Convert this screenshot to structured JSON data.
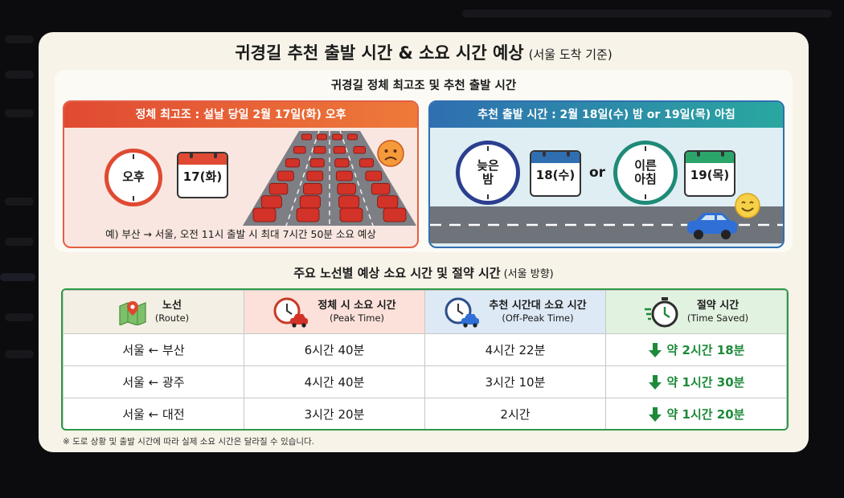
{
  "title": {
    "main": "귀경길 추천 출발 시간 & 소요 시간 예상",
    "sub": "(서울 도착 기준)"
  },
  "top_section": {
    "heading": "귀경길 정체 최고조 및 추천 출발 시간",
    "peak": {
      "header": "정체 최고조 : 설날 당일 2월 17일(화) 오후",
      "clock_label": "오후",
      "calendar_label": "17(화)",
      "note": "예) 부산 → 서울, 오전 11시 출발 시 최대 7시간 50분 소요 예상"
    },
    "recommend": {
      "header": "추천 출발 시간 : 2월 18일(수) 밤 or 19일(목) 아침",
      "clock1_line1": "늦은",
      "clock1_line2": "밤",
      "calendar1_label": "18(수)",
      "or_label": "or",
      "clock2_line1": "이른",
      "clock2_line2": "아침",
      "calendar2_label": "19(목)"
    }
  },
  "table_section": {
    "heading": "주요 노선별 예상 소요 시간 및 절약 시간",
    "heading_sub": "(서울 방향)",
    "columns": [
      {
        "ko": "노선",
        "en": "(Route)",
        "icon": "map-icon"
      },
      {
        "ko": "정체 시 소요 시간",
        "en": "(Peak Time)",
        "icon": "clock-car-icon"
      },
      {
        "ko": "추천 시간대 소요 시간",
        "en": "(Off-Peak Time)",
        "icon": "clock-car-icon"
      },
      {
        "ko": "절약 시간",
        "en": "(Time Saved)",
        "icon": "stopwatch-icon"
      }
    ],
    "rows": [
      {
        "route": "서울 ← 부산",
        "peak": "6시간 40분",
        "offpeak": "4시간 22분",
        "saved": "약 2시간 18분"
      },
      {
        "route": "서울 ← 광주",
        "peak": "4시간 40분",
        "offpeak": "3시간 10분",
        "saved": "약 1시간 30분"
      },
      {
        "route": "서울 ← 대전",
        "peak": "3시간 20분",
        "offpeak": "2시간",
        "saved": "약 1시간 20분"
      }
    ]
  },
  "footnote": "※ 도로 상황 및 출발 시간에 따라 실제 소요 시간은 달라질 수 있습니다.",
  "colors": {
    "peak_accent": "#e25f42",
    "recommend_accent": "#2f6fb1",
    "saved_green": "#1d8a3a"
  }
}
